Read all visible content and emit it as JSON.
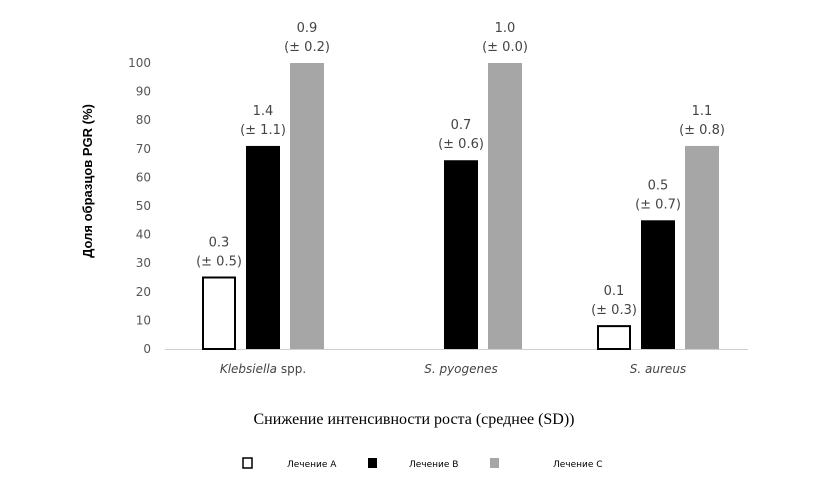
{
  "chart_data": {
    "type": "bar",
    "title": "",
    "xlabel": "Снижение интенсивности роста (среднее (SD))",
    "ylabel": "Доля образцов PGR (%)",
    "ylim": [
      0,
      100
    ],
    "yticks": [
      0,
      10,
      20,
      30,
      40,
      50,
      60,
      70,
      80,
      90,
      100
    ],
    "categories": [
      {
        "name": "Klebsiella",
        "suffix": " spp.",
        "italic": true
      },
      {
        "name": "S. pyogenes",
        "suffix": "",
        "italic": true
      },
      {
        "name": "S. aureus",
        "suffix": "",
        "italic": true
      }
    ],
    "series": [
      {
        "name": "Лечение А",
        "fill": "#ffffff",
        "stroke": "#000000",
        "values": [
          25,
          null,
          8
        ],
        "labels": [
          [
            "0.3",
            "(± 0.5)"
          ],
          null,
          [
            "0.1",
            "(± 0.3)"
          ]
        ]
      },
      {
        "name": "Лечение В",
        "fill": "#000000",
        "stroke": "#000000",
        "values": [
          71,
          66,
          45
        ],
        "labels": [
          [
            "1.4",
            "(± 1.1)"
          ],
          [
            "0.7",
            "(± 0.6)"
          ],
          [
            "0.5",
            "(± 0.7)"
          ]
        ]
      },
      {
        "name": "Лечение С",
        "fill": "#a6a6a6",
        "stroke": "#a6a6a6",
        "values": [
          100,
          100,
          71
        ],
        "labels": [
          [
            "0.9",
            "(± 0.2)"
          ],
          [
            "1.0",
            "(± 0.0)"
          ],
          [
            "1.1",
            "(± 0.8)"
          ]
        ]
      }
    ],
    "legend_position": "bottom"
  }
}
